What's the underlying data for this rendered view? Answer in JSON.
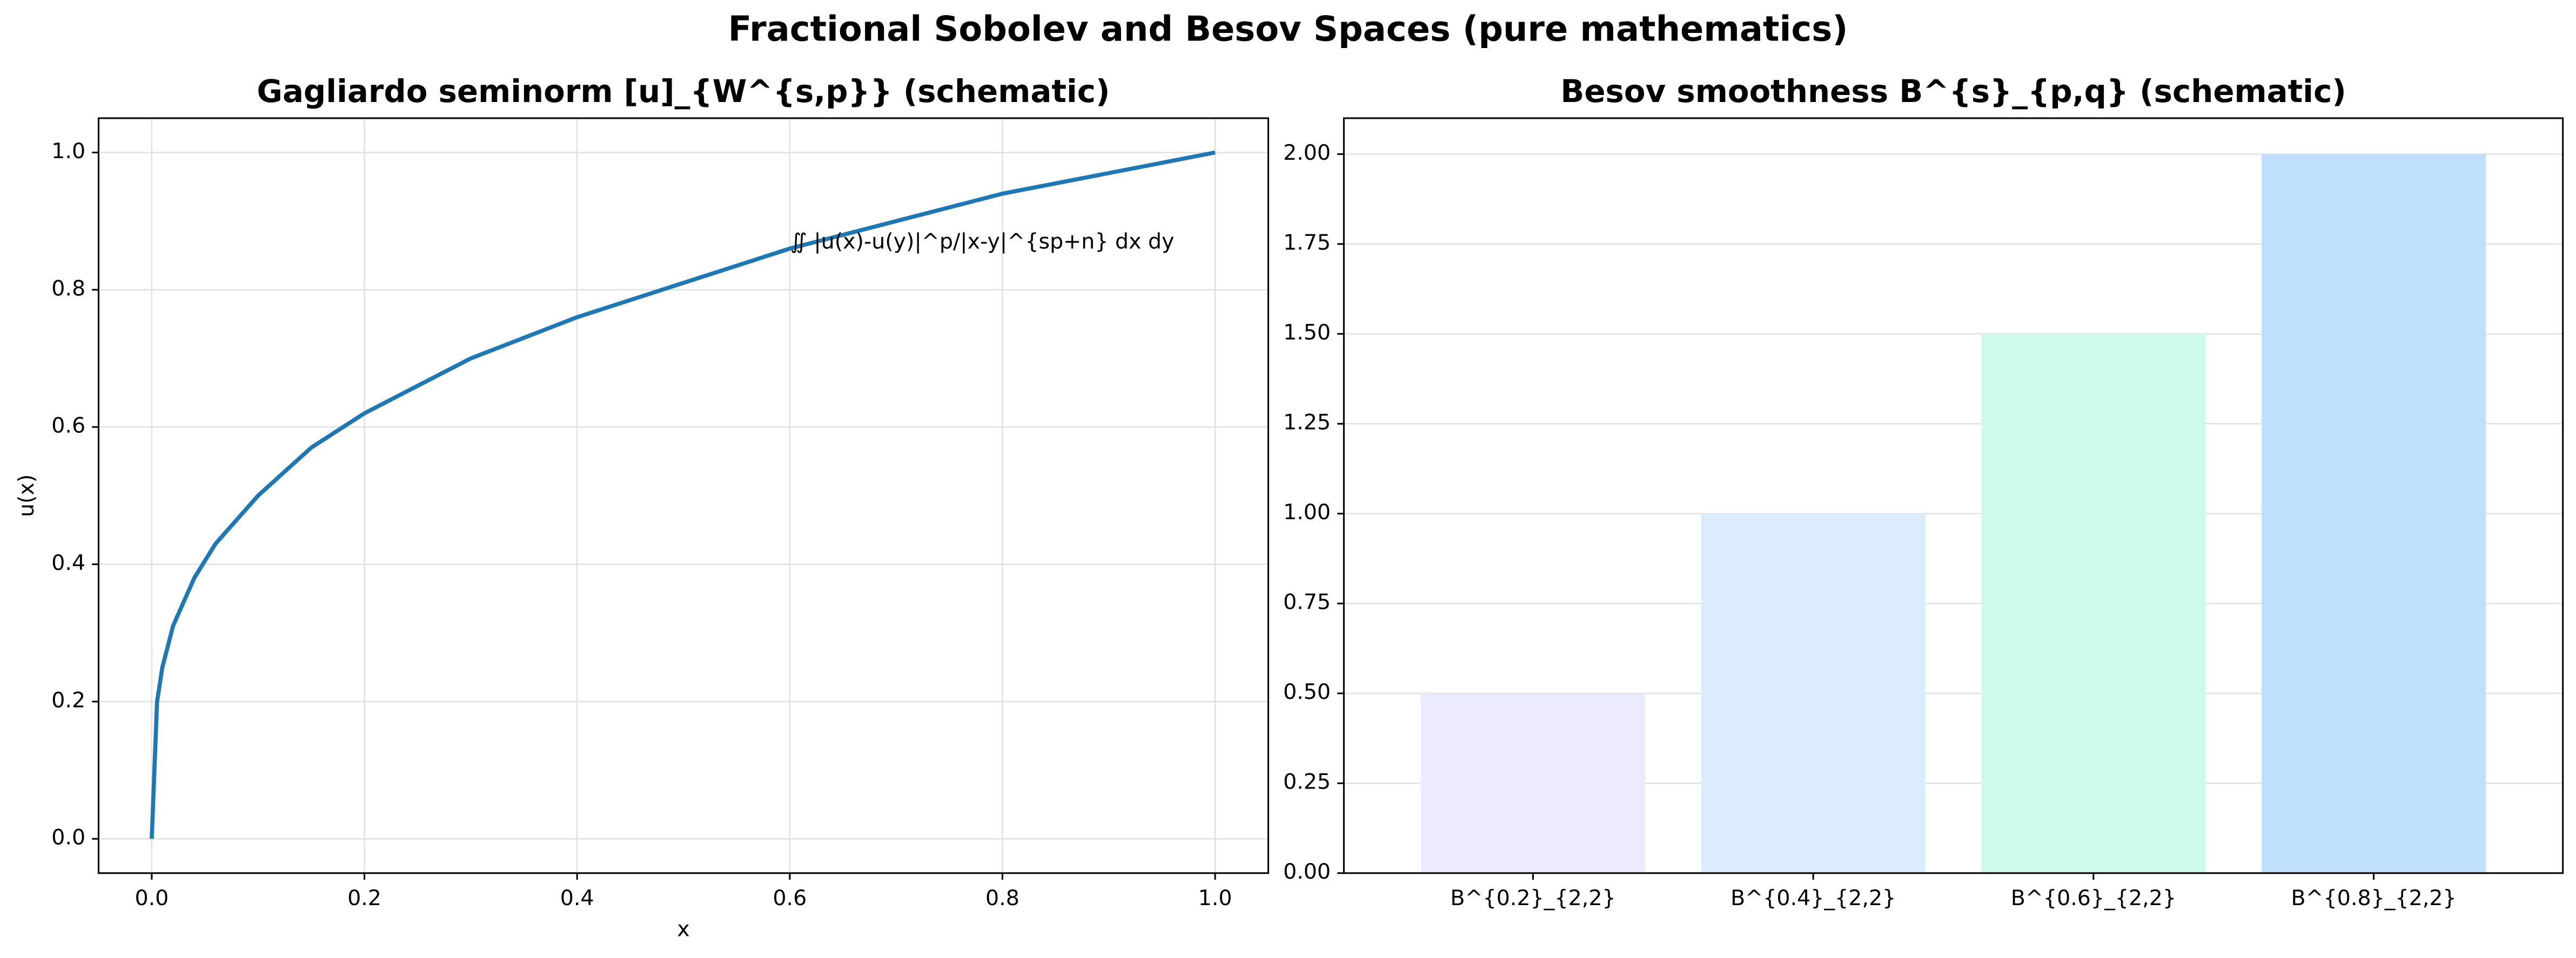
{
  "title": "Fractional Sobolev and Besov Spaces (pure mathematics)",
  "chart_data": [
    {
      "type": "line",
      "title": "Gagliardo seminorm [u]_{W^{s,p}} (schematic)",
      "x_label": "x",
      "y_label": "u(x)",
      "annotation": "∬ |u(x)-u(y)|^p/|x-y|^{sp+n} dx dy",
      "x": [
        0,
        0.005,
        0.01,
        0.02,
        0.04,
        0.06,
        0.1,
        0.15,
        0.2,
        0.3,
        0.4,
        0.5,
        0.6,
        0.7,
        0.8,
        0.9,
        1.0
      ],
      "series": [
        {
          "color": "#1f77b4",
          "values": [
            0,
            0.2,
            0.25,
            0.31,
            0.38,
            0.43,
            0.5,
            0.57,
            0.62,
            0.7,
            0.76,
            0.81,
            0.86,
            0.9,
            0.94,
            0.97,
            1.0
          ]
        }
      ],
      "xlim": [
        -0.05,
        1.05
      ],
      "ylim": [
        -0.05,
        1.05
      ],
      "xticks": [
        {
          "value": 0,
          "label": "0.0"
        },
        {
          "value": 0.2,
          "label": "0.2"
        },
        {
          "value": 0.4,
          "label": "0.4"
        },
        {
          "value": 0.6,
          "label": "0.6"
        },
        {
          "value": 0.8,
          "label": "0.8"
        },
        {
          "value": 1,
          "label": "1.0"
        }
      ],
      "yticks": [
        {
          "value": 0,
          "label": "0.0"
        },
        {
          "value": 0.2,
          "label": "0.2"
        },
        {
          "value": 0.4,
          "label": "0.4"
        },
        {
          "value": 0.6,
          "label": "0.6"
        },
        {
          "value": 0.8,
          "label": "0.8"
        },
        {
          "value": 1,
          "label": "1.0"
        }
      ],
      "grid": true
    },
    {
      "type": "bar",
      "title": "Besov smoothness B^{s}_{p,q} (schematic)",
      "categories": [
        "B^{0.2}_{2,2}",
        "B^{0.4}_{2,2}",
        "B^{0.6}_{2,2}",
        "B^{0.8}_{2,2}"
      ],
      "values": [
        0.5,
        1.0,
        1.5,
        2.0
      ],
      "colors": [
        "#ecebfd",
        "#dbecfd",
        "#ccfbeb",
        "#bfdffd"
      ],
      "ylim": [
        0,
        2.1
      ],
      "yticks": [
        {
          "value": 0,
          "label": "0.00"
        },
        {
          "value": 0.25,
          "label": "0.25"
        },
        {
          "value": 0.5,
          "label": "0.50"
        },
        {
          "value": 0.75,
          "label": "0.75"
        },
        {
          "value": 1,
          "label": "1.00"
        },
        {
          "value": 1.25,
          "label": "1.25"
        },
        {
          "value": 1.5,
          "label": "1.50"
        },
        {
          "value": 1.75,
          "label": "1.75"
        },
        {
          "value": 2,
          "label": "2.00"
        }
      ],
      "grid": true
    }
  ]
}
